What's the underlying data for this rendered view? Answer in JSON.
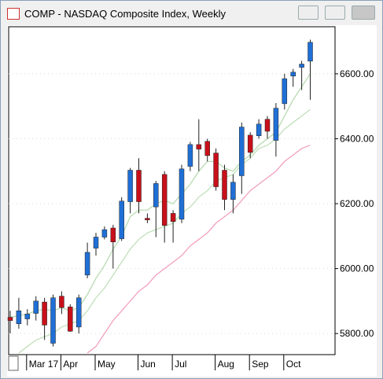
{
  "window_title": "COMP - NASDAQ Composite Index, Weekly",
  "chart_data": {
    "type": "candlestick",
    "categories": [
      null,
      null,
      "Mar 17",
      null,
      null,
      null,
      "Apr",
      null,
      null,
      null,
      "May",
      null,
      null,
      null,
      null,
      "Jun",
      null,
      null,
      null,
      "Jul",
      null,
      null,
      null,
      null,
      "Aug",
      null,
      null,
      null,
      "Sep",
      null,
      null,
      null,
      "Oct",
      null,
      null,
      null
    ],
    "open": [
      5850,
      5830,
      5845,
      5862,
      5897,
      5770,
      5915,
      5882,
      5820,
      5980,
      6063,
      6097,
      6125,
      6092,
      6206,
      6303,
      6155,
      6190,
      6290,
      6170,
      6152,
      6315,
      6382,
      6392,
      6356,
      6303,
      6213,
      6286,
      6411,
      6409,
      6460,
      6395,
      6508,
      6593,
      6620,
      6639
    ],
    "high": [
      5870,
      5910,
      5875,
      5915,
      5910,
      5920,
      5930,
      5890,
      5920,
      6080,
      6110,
      6130,
      6135,
      6220,
      6310,
      6340,
      6170,
      6270,
      6300,
      6180,
      6320,
      6390,
      6460,
      6400,
      6370,
      6320,
      6290,
      6450,
      6420,
      6460,
      6470,
      6510,
      6600,
      6615,
      6640,
      6705
    ],
    "low": [
      5800,
      5815,
      5825,
      5840,
      5780,
      5760,
      5860,
      5805,
      5800,
      5970,
      6040,
      6090,
      6000,
      6085,
      6170,
      6170,
      6140,
      6097,
      6080,
      6080,
      6140,
      6300,
      6300,
      6330,
      6240,
      6180,
      6170,
      6230,
      6340,
      6400,
      6400,
      6345,
      6490,
      6560,
      6550,
      6520
    ],
    "close": [
      5840,
      5870,
      5860,
      5900,
      5826,
      5910,
      5880,
      5807,
      5910,
      6050,
      6097,
      6120,
      6082,
      6208,
      6303,
      6206,
      6150,
      6262,
      6133,
      6145,
      6307,
      6382,
      6368,
      6348,
      6252,
      6213,
      6266,
      6436,
      6358,
      6445,
      6423,
      6494,
      6585,
      6605,
      6630,
      6697
    ],
    "up_color": "#1f6fd6",
    "down_color": "#c8101a",
    "series": [
      {
        "color": "#b8dbb0",
        "values": [
          5850,
          5855,
          5860,
          5870,
          5875,
          5870,
          5880,
          5870,
          5880,
          5920,
          5970,
          6010,
          6060,
          6100,
          6160,
          6180,
          6180,
          6200,
          6210,
          6200,
          6230,
          6260,
          6300,
          6330,
          6330,
          6310,
          6300,
          6330,
          6350,
          6380,
          6400,
          6420,
          6470,
          6520,
          6560,
          6600
        ]
      },
      {
        "color": "#c2e0bb",
        "values": [
          null,
          5740,
          5760,
          5780,
          5790,
          5800,
          5820,
          5830,
          5840,
          5870,
          5910,
          5940,
          5980,
          6020,
          6060,
          6090,
          6110,
          6120,
          6130,
          6140,
          6170,
          6190,
          6220,
          6240,
          6270,
          6280,
          6290,
          6320,
          6340,
          6370,
          6380,
          6400,
          6430,
          6450,
          6470,
          6490
        ]
      },
      {
        "color": "#f2a0c0",
        "values": [
          null,
          null,
          null,
          null,
          null,
          null,
          null,
          null,
          null,
          5740,
          5760,
          5800,
          5840,
          5870,
          5900,
          5930,
          5950,
          5980,
          6000,
          6020,
          6040,
          6070,
          6090,
          6110,
          6140,
          6160,
          6180,
          6210,
          6240,
          6260,
          6280,
          6300,
          6330,
          6350,
          6370,
          6380
        ]
      }
    ],
    "ylim": [
      5735,
      6745
    ],
    "yticks": [
      {
        "value": 5800,
        "label": "5800.00"
      },
      {
        "value": 6000,
        "label": "6000.00"
      },
      {
        "value": 6200,
        "label": "6200.00"
      },
      {
        "value": 6400,
        "label": "6400.00"
      },
      {
        "value": 6600,
        "label": "6600.00"
      }
    ],
    "grid": true
  }
}
